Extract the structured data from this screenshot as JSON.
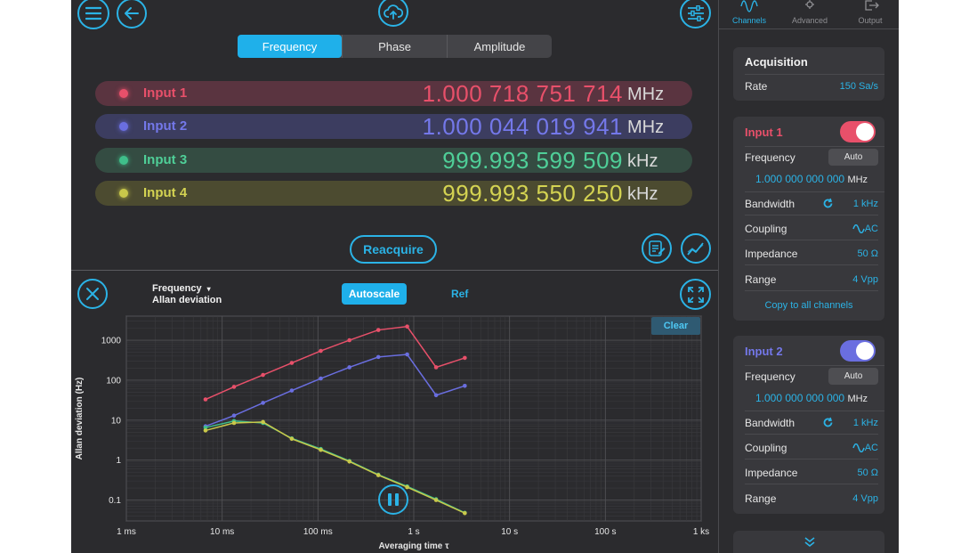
{
  "colors": {
    "accent": "#2bb3e6",
    "input1": "#e8506a",
    "input2": "#6a6ee0",
    "input3": "#3fbf8a",
    "input4": "#c9c84a"
  },
  "icons": [
    "menu-icon",
    "back-icon",
    "cloud-upload-icon",
    "settings-sliders-icon",
    "notes-icon",
    "chart-icon",
    "close-icon",
    "expand-icon",
    "pause-icon",
    "refresh-icon",
    "ac-wave-icon",
    "chevron-down-icon"
  ],
  "mode_tabs": [
    "Frequency",
    "Phase",
    "Amplitude"
  ],
  "active_mode": "Frequency",
  "inputs": [
    {
      "name": "Input 1",
      "value": "1.000 718 751 714",
      "unit": "MHz"
    },
    {
      "name": "Input 2",
      "value": "1.000 044 019 941",
      "unit": "MHz"
    },
    {
      "name": "Input 3",
      "value": "999.993 599 509",
      "unit": "kHz"
    },
    {
      "name": "Input 4",
      "value": "999.993 550 250",
      "unit": "kHz"
    }
  ],
  "reacquire_label": "Reacquire",
  "plot": {
    "title_line1": "Frequency",
    "title_line2": "Allan deviation",
    "autoscale_label": "Autoscale",
    "ref_label": "Ref",
    "clear_label": "Clear"
  },
  "chart_data": {
    "type": "line",
    "xlabel": "Averaging time τ",
    "ylabel": "Allan deviation (Hz)",
    "x_scale": "log",
    "y_scale": "log",
    "xlim": [
      "1 ms",
      "1 ks"
    ],
    "ylim": [
      0.03,
      4000
    ],
    "x_tick_labels": [
      "1 ms",
      "10 ms",
      "100 ms",
      "1 s",
      "10 s",
      "100 s",
      "1 ks"
    ],
    "y_tick_labels": [
      "0.1",
      "1",
      "10",
      "100",
      "1000"
    ],
    "grid": true,
    "series": [
      {
        "color": "#e8506a",
        "x": [
          "6.7 ms",
          "13.3 ms",
          "26.7 ms",
          "53.3 ms",
          "107 ms",
          "213 ms",
          "427 ms",
          "853 ms",
          "1.71 s",
          "3.41 s"
        ],
        "y": [
          33,
          68,
          135,
          270,
          540,
          1000,
          1800,
          2200,
          210,
          360
        ]
      },
      {
        "color": "#6a6ee0",
        "x": [
          "6.7 ms",
          "13.3 ms",
          "26.7 ms",
          "53.3 ms",
          "107 ms",
          "213 ms",
          "427 ms",
          "853 ms",
          "1.71 s",
          "3.41 s"
        ],
        "y": [
          7,
          13,
          27,
          55,
          110,
          210,
          380,
          440,
          42,
          72
        ]
      },
      {
        "color": "#3fbf8a",
        "x": [
          "6.7 ms",
          "13.3 ms",
          "26.7 ms",
          "53.3 ms",
          "107 ms",
          "213 ms",
          "427 ms",
          "853 ms",
          "1.71 s",
          "3.41 s"
        ],
        "y": [
          6.5,
          9.5,
          8.5,
          3.5,
          1.9,
          0.95,
          0.43,
          0.22,
          0.105,
          0.048
        ]
      },
      {
        "color": "#c9c84a",
        "x": [
          "6.7 ms",
          "13.3 ms",
          "26.7 ms",
          "53.3 ms",
          "107 ms",
          "213 ms",
          "427 ms",
          "853 ms",
          "1.71 s",
          "3.41 s"
        ],
        "y": [
          5.5,
          8.5,
          9,
          3.4,
          1.8,
          0.92,
          0.42,
          0.21,
          0.1,
          0.047
        ]
      }
    ]
  },
  "sidebar": {
    "tabs": [
      "Channels",
      "Advanced",
      "Output"
    ],
    "active_tab": "Channels",
    "acquisition": {
      "title": "Acquisition",
      "rate_label": "Rate",
      "rate_value": "150 Sa/s"
    },
    "input1": {
      "title": "Input 1",
      "enabled": true,
      "frequency_label": "Frequency",
      "auto_label": "Auto",
      "frequency_value": "1.000 000 000 000",
      "frequency_unit": "MHz",
      "bandwidth_label": "Bandwidth",
      "bandwidth_value": "1 kHz",
      "coupling_label": "Coupling",
      "coupling_value": "AC",
      "impedance_label": "Impedance",
      "impedance_value": "50 Ω",
      "range_label": "Range",
      "range_value": "4 Vpp",
      "copy_label": "Copy to all channels"
    },
    "input2": {
      "title": "Input 2",
      "enabled": true,
      "frequency_label": "Frequency",
      "auto_label": "Auto",
      "frequency_value": "1.000 000 000 000",
      "frequency_unit": "MHz",
      "bandwidth_label": "Bandwidth",
      "bandwidth_value": "1 kHz",
      "coupling_label": "Coupling",
      "coupling_value": "AC",
      "impedance_label": "Impedance",
      "impedance_value": "50 Ω",
      "range_label": "Range",
      "range_value": "4 Vpp"
    }
  }
}
